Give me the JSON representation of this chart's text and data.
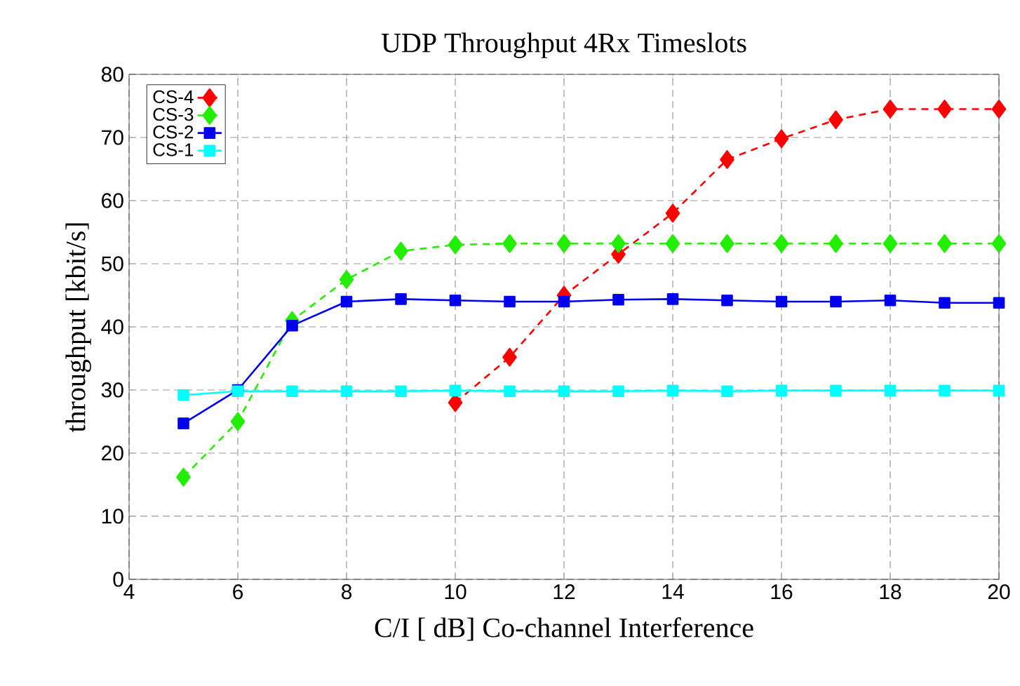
{
  "chart_data": {
    "type": "line",
    "title": "UDP Throughput  4Rx Timeslots",
    "xlabel": "C/I [ dB] Co-channel Interference",
    "ylabel": "throughput [kbit/s]",
    "xlim": [
      4,
      20
    ],
    "xticks": [
      4,
      6,
      8,
      10,
      12,
      14,
      16,
      18,
      20
    ],
    "ylim": [
      0,
      80
    ],
    "yticks": [
      0,
      10,
      20,
      30,
      40,
      50,
      60,
      70,
      80
    ],
    "grid": true,
    "legend": "top left",
    "series": [
      {
        "name": "CS-4",
        "color": "#ff0000",
        "marker": "diamond",
        "line_style": "dashed",
        "x": [
          10,
          11,
          12,
          13,
          14,
          15,
          16,
          17,
          18,
          19,
          20
        ],
        "values": [
          28,
          35.2,
          45,
          51.5,
          58,
          66.5,
          69.8,
          72.8,
          74.5,
          74.5,
          74.5
        ]
      },
      {
        "name": "CS-3",
        "color": "#22ee00",
        "marker": "diamond",
        "line_style": "dashed",
        "x": [
          5,
          6,
          7,
          8,
          9,
          10,
          11,
          12,
          13,
          14,
          15,
          16,
          17,
          18,
          19,
          20
        ],
        "values": [
          16.2,
          25,
          41,
          47.5,
          52,
          53,
          53.2,
          53.2,
          53.2,
          53.2,
          53.2,
          53.2,
          53.2,
          53.2,
          53.2,
          53.2
        ]
      },
      {
        "name": "CS-2",
        "color": "#0000ee",
        "marker": "square",
        "line_style": "solid",
        "x": [
          5,
          6,
          7,
          8,
          9,
          10,
          11,
          12,
          13,
          14,
          15,
          16,
          17,
          18,
          19,
          20
        ],
        "values": [
          24.7,
          30,
          40.2,
          44,
          44.4,
          44.2,
          44,
          44,
          44.3,
          44.4,
          44.2,
          44,
          44,
          44.2,
          43.8,
          43.8
        ]
      },
      {
        "name": "CS-1",
        "color": "#00ffff",
        "marker": "square",
        "line_style": "solid",
        "x": [
          5,
          6,
          7,
          8,
          9,
          10,
          11,
          12,
          13,
          14,
          15,
          16,
          17,
          18,
          19,
          20
        ],
        "values": [
          29.2,
          29.8,
          29.8,
          29.8,
          29.8,
          29.9,
          29.8,
          29.8,
          29.8,
          29.9,
          29.8,
          29.9,
          29.9,
          29.9,
          29.9,
          29.9
        ]
      }
    ]
  }
}
